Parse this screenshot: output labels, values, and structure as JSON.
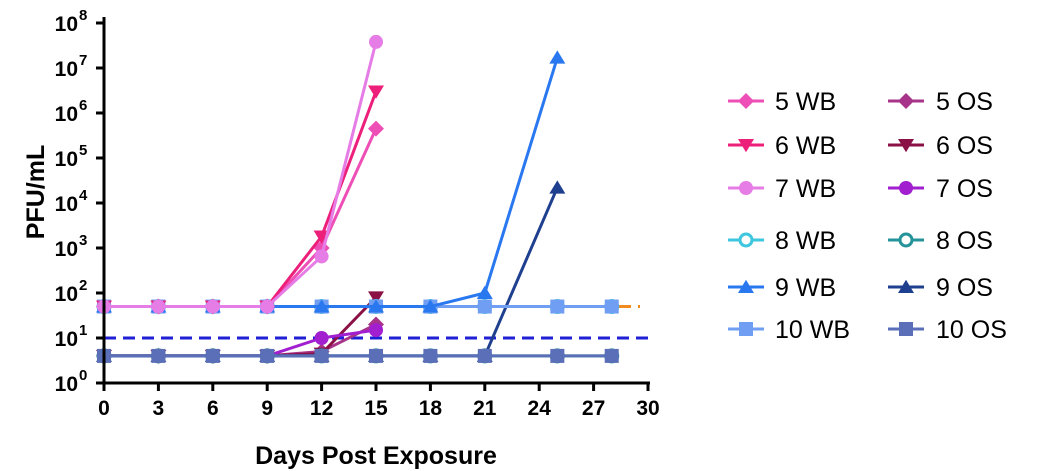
{
  "chart_data": {
    "type": "line",
    "title": "",
    "xlabel": "Days Post Exposure",
    "ylabel": "PFU/mL",
    "xlim": [
      0,
      30
    ],
    "ylim_log10": [
      0,
      8
    ],
    "y_scale": "log",
    "x_ticks": [
      "0",
      "3",
      "6",
      "9",
      "12",
      "15",
      "18",
      "21",
      "24",
      "27",
      "30"
    ],
    "y_ticks": [
      {
        "base": "10",
        "exp": "0"
      },
      {
        "base": "10",
        "exp": "1"
      },
      {
        "base": "10",
        "exp": "2"
      },
      {
        "base": "10",
        "exp": "3"
      },
      {
        "base": "10",
        "exp": "4"
      },
      {
        "base": "10",
        "exp": "5"
      },
      {
        "base": "10",
        "exp": "6"
      },
      {
        "base": "10",
        "exp": "7"
      },
      {
        "base": "10",
        "exp": "8"
      }
    ],
    "legend_placement": "right",
    "reference_lines": [
      {
        "y": 10,
        "color": "#1f1fd6",
        "style": "dashed"
      },
      {
        "y": 50,
        "color": "#f28a1e",
        "style": "dashed"
      }
    ],
    "series": [
      {
        "name": "5 WB",
        "color": "#ee4fb6",
        "marker": "diamond",
        "x": [
          0,
          3,
          6,
          9,
          12,
          15
        ],
        "y": [
          50,
          50,
          50,
          50,
          1000,
          450000
        ]
      },
      {
        "name": "6 WB",
        "color": "#ec1f7a",
        "marker": "triangle-down",
        "x": [
          0,
          3,
          6,
          9,
          12,
          15
        ],
        "y": [
          50,
          50,
          50,
          50,
          1800,
          3000000
        ]
      },
      {
        "name": "7 WB",
        "color": "#e67ce6",
        "marker": "circle",
        "x": [
          0,
          3,
          6,
          9,
          12,
          15
        ],
        "y": [
          50,
          50,
          50,
          50,
          650,
          38000000
        ]
      },
      {
        "name": "8 WB",
        "color": "#3cc7df",
        "marker": "circle-open",
        "x": [
          0,
          3,
          6,
          9,
          12,
          15,
          18,
          21,
          25,
          28
        ],
        "y": [
          50,
          50,
          50,
          50,
          50,
          50,
          50,
          50,
          50,
          50
        ]
      },
      {
        "name": "9 WB",
        "color": "#2a78f0",
        "marker": "triangle-up",
        "x": [
          0,
          3,
          6,
          9,
          12,
          15,
          18,
          21,
          25
        ],
        "y": [
          50,
          50,
          50,
          50,
          50,
          50,
          50,
          100,
          17000000
        ]
      },
      {
        "name": "10 WB",
        "color": "#6f9ef2",
        "marker": "square",
        "x": [
          0,
          3,
          6,
          9,
          12,
          15,
          18,
          21,
          25,
          28
        ],
        "y": [
          50,
          50,
          50,
          50,
          50,
          50,
          50,
          50,
          50,
          50
        ]
      },
      {
        "name": "5 OS",
        "color": "#a8348a",
        "marker": "diamond",
        "x": [
          0,
          3,
          6,
          9,
          12,
          15
        ],
        "y": [
          4,
          4,
          4,
          4,
          5,
          20
        ]
      },
      {
        "name": "6 OS",
        "color": "#8a1045",
        "marker": "triangle-down",
        "x": [
          0,
          3,
          6,
          9,
          12,
          15
        ],
        "y": [
          4,
          4,
          4,
          4,
          4.5,
          80
        ]
      },
      {
        "name": "7 OS",
        "color": "#a21fcf",
        "marker": "circle",
        "x": [
          0,
          3,
          6,
          9,
          12,
          15
        ],
        "y": [
          4,
          4,
          4,
          4,
          10,
          15
        ]
      },
      {
        "name": "8 OS",
        "color": "#24939a",
        "marker": "circle-open",
        "x": [
          0,
          3,
          6,
          9,
          12,
          15,
          18,
          21,
          25,
          28
        ],
        "y": [
          4,
          4,
          4,
          4,
          4,
          4,
          4,
          4,
          4,
          4
        ]
      },
      {
        "name": "9 OS",
        "color": "#1f3f8f",
        "marker": "triangle-up",
        "x": [
          0,
          3,
          6,
          9,
          12,
          15,
          18,
          21,
          25
        ],
        "y": [
          4,
          4,
          4,
          4,
          4,
          4,
          4,
          4,
          22000
        ]
      },
      {
        "name": "10 OS",
        "color": "#5a6fb8",
        "marker": "square",
        "x": [
          0,
          3,
          6,
          9,
          12,
          15,
          18,
          21,
          25,
          28
        ],
        "y": [
          4,
          4,
          4,
          4,
          4,
          4,
          4,
          4,
          4,
          4
        ]
      }
    ]
  }
}
